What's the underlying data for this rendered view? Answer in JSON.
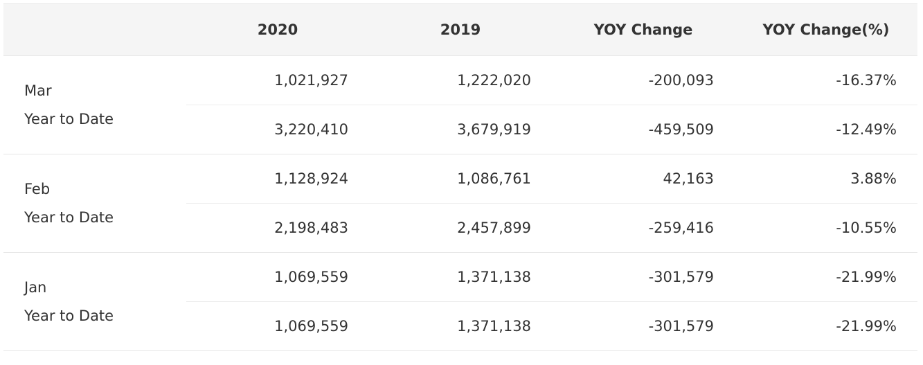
{
  "table": {
    "headers": [
      "",
      "2020",
      "2019",
      "YOY Change",
      "YOY Change(%)"
    ],
    "groups": [
      {
        "month": "Mar",
        "subtitle": "Year to Date",
        "rows": [
          [
            "1,021,927",
            "1,222,020",
            "-200,093",
            "-16.37%"
          ],
          [
            "3,220,410",
            "3,679,919",
            "-459,509",
            "-12.49%"
          ]
        ]
      },
      {
        "month": "Feb",
        "subtitle": "Year to Date",
        "rows": [
          [
            "1,128,924",
            "1,086,761",
            "42,163",
            "3.88%"
          ],
          [
            "2,198,483",
            "2,457,899",
            "-259,416",
            "-10.55%"
          ]
        ]
      },
      {
        "month": "Jan",
        "subtitle": "Year to Date",
        "rows": [
          [
            "1,069,559",
            "1,371,138",
            "-301,579",
            "-21.99%"
          ],
          [
            "1,069,559",
            "1,371,138",
            "-301,579",
            "-21.99%"
          ]
        ]
      }
    ]
  }
}
